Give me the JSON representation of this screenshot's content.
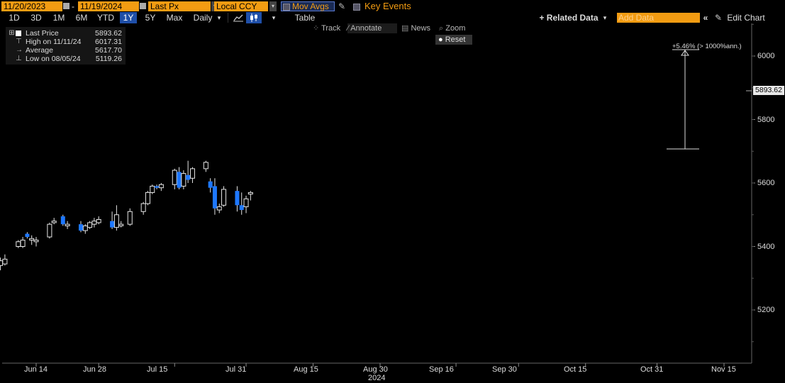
{
  "toolbar": {
    "start_date": "11/20/2023",
    "end_date": "11/19/2024",
    "field": "Last Px",
    "currency": "Local CCY",
    "mov_avgs": "Mov Avgs",
    "key_events": "Key Events",
    "timeframes": [
      "1D",
      "3D",
      "1M",
      "6M",
      "YTD",
      "1Y",
      "5Y",
      "Max"
    ],
    "selected_timeframe": "1Y",
    "period": "Daily",
    "table": "Table",
    "related_data": "+ Related Data",
    "add_data_placeholder": "Add Data",
    "edit_chart": "Edit Chart",
    "collapse": "«",
    "dropdown": "▾"
  },
  "tools": {
    "track": "Track",
    "annotate": "Annotate",
    "news": "News",
    "zoom": "Zoom",
    "reset": "Reset"
  },
  "legend": {
    "last_label": "Last Price",
    "last_value": "5893.62",
    "high_label": "High on 11/11/24",
    "high_value": "6017.31",
    "avg_label": "Average",
    "avg_value": "5617.70",
    "low_label": "Low on 08/05/24",
    "low_value": "5119.26"
  },
  "annotation": {
    "text": "+5.46% (> 1000%ann.)"
  },
  "last_price_tag": "5893.62",
  "colors": {
    "up": "#e6e6e6",
    "down": "#1e78ff",
    "accent": "#f39c12",
    "background": "#000000"
  },
  "chart_data": {
    "type": "candlestick",
    "xlabel": "2024",
    "ylim": [
      5040,
      6120
    ],
    "y_ticks": [
      5200,
      5400,
      5600,
      5800,
      6000
    ],
    "x_ticks": [
      "Jun 14",
      "Jun 28",
      "Jul 15",
      "Jul 31",
      "Aug 15",
      "Aug 30",
      "Sep 16",
      "Sep 30",
      "Oct 15",
      "Oct 31",
      "Nov 15"
    ],
    "x_tick_dates": [
      "2024-06-14",
      "2024-06-28",
      "2024-07-15",
      "2024-07-31",
      "2024-08-15",
      "2024-08-30",
      "2024-09-16",
      "2024-09-30",
      "2024-10-15",
      "2024-10-31",
      "2024-11-15"
    ],
    "candles": [
      {
        "date": "2024-06-03",
        "open": 5340,
        "high": 5370,
        "low": 5330,
        "close": 5335
      },
      {
        "date": "2024-06-04",
        "open": 5335,
        "high": 5355,
        "low": 5325,
        "close": 5345
      },
      {
        "date": "2024-06-05",
        "open": 5345,
        "high": 5375,
        "low": 5340,
        "close": 5360
      },
      {
        "date": "2024-06-06",
        "open": 5340,
        "high": 5365,
        "low": 5325,
        "close": 5355
      },
      {
        "date": "2024-06-07",
        "open": 5345,
        "high": 5375,
        "low": 5340,
        "close": 5360
      },
      {
        "date": "2024-06-10",
        "open": 5400,
        "high": 5420,
        "low": 5395,
        "close": 5415
      },
      {
        "date": "2024-06-11",
        "open": 5400,
        "high": 5430,
        "low": 5395,
        "close": 5420
      },
      {
        "date": "2024-06-12",
        "open": 5440,
        "high": 5445,
        "low": 5425,
        "close": 5430
      },
      {
        "date": "2024-06-13",
        "open": 5420,
        "high": 5435,
        "low": 5405,
        "close": 5425
      },
      {
        "date": "2024-06-14",
        "open": 5415,
        "high": 5430,
        "low": 5400,
        "close": 5420
      },
      {
        "date": "2024-06-17",
        "open": 5430,
        "high": 5475,
        "low": 5425,
        "close": 5470
      },
      {
        "date": "2024-06-18",
        "open": 5475,
        "high": 5490,
        "low": 5470,
        "close": 5480
      },
      {
        "date": "2024-06-20",
        "open": 5495,
        "high": 5500,
        "low": 5465,
        "close": 5470
      },
      {
        "date": "2024-06-21",
        "open": 5465,
        "high": 5480,
        "low": 5455,
        "close": 5470
      },
      {
        "date": "2024-06-24",
        "open": 5470,
        "high": 5480,
        "low": 5445,
        "close": 5450
      },
      {
        "date": "2024-06-25",
        "open": 5450,
        "high": 5470,
        "low": 5440,
        "close": 5465
      },
      {
        "date": "2024-06-26",
        "open": 5460,
        "high": 5480,
        "low": 5455,
        "close": 5475
      },
      {
        "date": "2024-06-27",
        "open": 5470,
        "high": 5490,
        "low": 5460,
        "close": 5480
      },
      {
        "date": "2024-06-28",
        "open": 5475,
        "high": 5495,
        "low": 5470,
        "close": 5485
      },
      {
        "date": "2024-07-01",
        "open": 5480,
        "high": 5510,
        "low": 5455,
        "close": 5460
      },
      {
        "date": "2024-07-02",
        "open": 5460,
        "high": 5530,
        "low": 5450,
        "close": 5500
      },
      {
        "date": "2024-07-03",
        "open": 5465,
        "high": 5480,
        "low": 5460,
        "close": 5470
      },
      {
        "date": "2024-07-05",
        "open": 5470,
        "high": 5520,
        "low": 5465,
        "close": 5510
      },
      {
        "date": "2024-07-08",
        "open": 5510,
        "high": 5540,
        "low": 5500,
        "close": 5535
      },
      {
        "date": "2024-07-09",
        "open": 5535,
        "high": 5575,
        "low": 5530,
        "close": 5570
      },
      {
        "date": "2024-07-10",
        "open": 5570,
        "high": 5595,
        "low": 5565,
        "close": 5590
      },
      {
        "date": "2024-07-11",
        "open": 5590,
        "high": 5595,
        "low": 5580,
        "close": 5585
      },
      {
        "date": "2024-07-12",
        "open": 5585,
        "high": 5600,
        "low": 5575,
        "close": 5595
      },
      {
        "date": "2024-07-15",
        "open": 5595,
        "high": 5645,
        "low": 5580,
        "close": 5640
      },
      {
        "date": "2024-07-16",
        "open": 5635,
        "high": 5650,
        "low": 5580,
        "close": 5585
      },
      {
        "date": "2024-07-17",
        "open": 5590,
        "high": 5640,
        "low": 5580,
        "close": 5630
      },
      {
        "date": "2024-07-18",
        "open": 5625,
        "high": 5670,
        "low": 5600,
        "close": 5610
      },
      {
        "date": "2024-07-19",
        "open": 5615,
        "high": 5650,
        "low": 5600,
        "close": 5645
      },
      {
        "date": "2024-07-22",
        "open": 5645,
        "high": 5670,
        "low": 5635,
        "close": 5665
      },
      {
        "date": "2024-07-23",
        "open": 5605,
        "high": 5615,
        "low": 5570,
        "close": 5585
      },
      {
        "date": "2024-07-24",
        "open": 5590,
        "high": 5615,
        "low": 5500,
        "close": 5520
      },
      {
        "date": "2024-07-25",
        "open": 5515,
        "high": 5535,
        "low": 5505,
        "close": 5525
      },
      {
        "date": "2024-07-26",
        "open": 5530,
        "high": 5590,
        "low": 5525,
        "close": 5580
      },
      {
        "date": "2024-07-29",
        "open": 5575,
        "high": 5590,
        "low": 5510,
        "close": 5530
      },
      {
        "date": "2024-07-30",
        "open": 5530,
        "high": 5570,
        "low": 5500,
        "close": 5515
      },
      {
        "date": "2024-07-31",
        "open": 5525,
        "high": 5560,
        "low": 5505,
        "close": 5550
      },
      {
        "date": "2024-08-01",
        "open": 5565,
        "high": 5575,
        "low": 5545,
        "close": 5570
      }
    ]
  }
}
